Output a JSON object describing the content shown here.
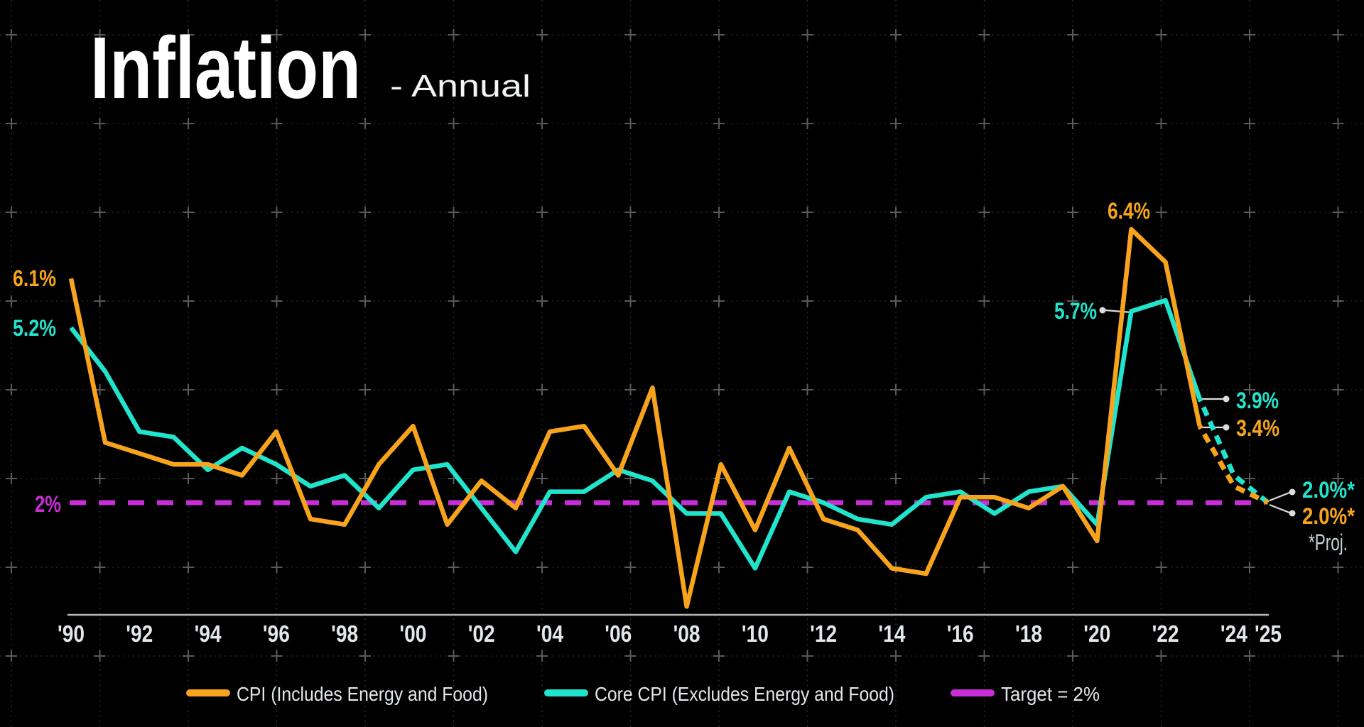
{
  "title": "Inflation",
  "subtitle": "- Annual",
  "colors": {
    "background": "#000000",
    "cpi": "#F7A41C",
    "core": "#21E4CD",
    "target": "#C82DD7",
    "axis_line": "#B8B8B8",
    "tick_label": "#E4E7EA"
  },
  "x_axis": {
    "tick_labels": [
      "'90",
      "'92",
      "'94",
      "'96",
      "'98",
      "'00",
      "'02",
      "'04",
      "'06",
      "'08",
      "'10",
      "'12",
      "'14",
      "'16",
      "'18",
      "'20",
      "'22",
      "'24",
      "'25"
    ],
    "tick_years": [
      1990,
      1992,
      1994,
      1996,
      1998,
      2000,
      2002,
      2004,
      2006,
      2008,
      2010,
      2012,
      2014,
      2016,
      2018,
      2020,
      2022,
      2024,
      2025
    ]
  },
  "legend": {
    "items": [
      {
        "label": "CPI (Includes Energy and Food)",
        "series": "cpi"
      },
      {
        "label": "Core CPI (Excludes Energy and Food)",
        "series": "core"
      },
      {
        "label": "Target = 2%",
        "series": "target"
      }
    ]
  },
  "annotations": [
    {
      "text": "6.1%",
      "series": "cpi",
      "year": 1990,
      "value": 6.1
    },
    {
      "text": "5.2%",
      "series": "core",
      "year": 1990,
      "value": 5.2
    },
    {
      "text": "6.4%",
      "series": "cpi",
      "year": 2022,
      "value": 6.4
    },
    {
      "text": "5.7%",
      "series": "core",
      "year": 2022,
      "value": 5.7
    },
    {
      "text": "3.9%",
      "series": "core",
      "year": 2023,
      "value": 3.9
    },
    {
      "text": "3.4%",
      "series": "cpi",
      "year": 2023,
      "value": 3.4
    },
    {
      "text": "2.0%*",
      "series": "core",
      "year": 2025,
      "value": 2.0
    },
    {
      "text": "2.0%*",
      "series": "cpi",
      "year": 2025,
      "value": 2.0
    },
    {
      "text": "*Proj."
    },
    {
      "text": "2%",
      "series": "target",
      "value": 2.0
    }
  ],
  "chart_data": {
    "type": "line",
    "title": "Inflation - Annual",
    "x": [
      1990,
      1991,
      1992,
      1993,
      1994,
      1995,
      1996,
      1997,
      1998,
      1999,
      2000,
      2001,
      2002,
      2003,
      2004,
      2005,
      2006,
      2007,
      2008,
      2009,
      2010,
      2011,
      2012,
      2013,
      2014,
      2015,
      2016,
      2017,
      2018,
      2019,
      2020,
      2021,
      2022,
      2023
    ],
    "series": [
      {
        "name": "CPI (Includes Energy and Food)",
        "color": "#F7A41C",
        "values": [
          6.1,
          3.1,
          2.9,
          2.7,
          2.7,
          2.5,
          3.3,
          1.7,
          1.6,
          2.7,
          3.4,
          1.6,
          2.4,
          1.9,
          3.3,
          3.4,
          2.5,
          4.1,
          0.1,
          2.7,
          1.5,
          3.0,
          1.7,
          1.5,
          0.8,
          0.7,
          2.1,
          2.1,
          1.9,
          2.3,
          1.3,
          7.0,
          6.4,
          3.4
        ]
      },
      {
        "name": "Core CPI (Excludes Energy and Food)",
        "color": "#21E4CD",
        "values": [
          5.2,
          4.4,
          3.3,
          3.2,
          2.6,
          3.0,
          2.7,
          2.3,
          2.5,
          1.9,
          2.6,
          2.7,
          1.9,
          1.1,
          2.2,
          2.2,
          2.6,
          2.4,
          1.8,
          1.8,
          0.8,
          2.2,
          2.0,
          1.7,
          1.6,
          2.1,
          2.2,
          1.8,
          2.2,
          2.3,
          1.6,
          5.5,
          5.7,
          3.9
        ]
      }
    ],
    "projections": [
      {
        "name": "CPI projection",
        "color": "#F7A41C",
        "x": [
          2023,
          2024,
          2025
        ],
        "values": [
          3.4,
          2.3,
          2.0
        ]
      },
      {
        "name": "Core CPI projection",
        "color": "#21E4CD",
        "x": [
          2023,
          2024,
          2025
        ],
        "values": [
          3.9,
          2.5,
          2.0
        ]
      }
    ],
    "target_value": 2.0,
    "ylim": [
      0,
      7.5
    ],
    "xlabel": "",
    "ylabel": "",
    "grid": "dotted-with-plus-markers",
    "legend_position": "bottom"
  }
}
